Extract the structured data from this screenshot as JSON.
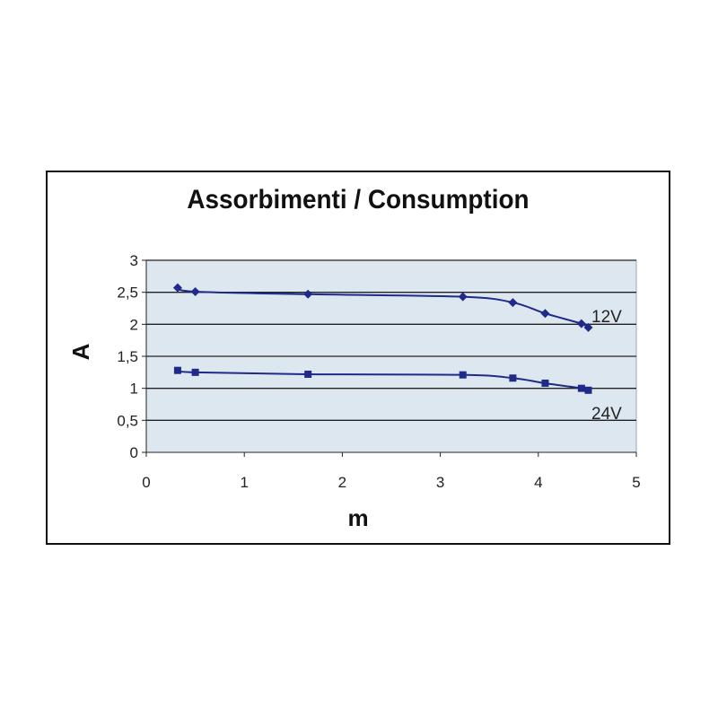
{
  "chart_data": {
    "type": "line",
    "title": "Assorbimenti / Consumption",
    "xlabel": "m",
    "ylabel": "A",
    "xlim": [
      0,
      5
    ],
    "ylim": [
      0,
      3
    ],
    "xticks": [
      "0",
      "1",
      "2",
      "3",
      "4",
      "5"
    ],
    "yticks": [
      "0",
      "0,5",
      "1",
      "1,5",
      "2",
      "2,5",
      "3"
    ],
    "grid": true,
    "series": [
      {
        "name": "12V",
        "marker": "diamond",
        "color": "#1f2a8a",
        "x": [
          0.32,
          0.5,
          1.65,
          3.23,
          3.74,
          4.07,
          4.44,
          4.51
        ],
        "y": [
          2.57,
          2.51,
          2.47,
          2.43,
          2.34,
          2.17,
          2.01,
          1.95
        ]
      },
      {
        "name": "24V",
        "marker": "square",
        "color": "#1f2a8a",
        "x": [
          0.32,
          0.5,
          1.65,
          3.23,
          3.74,
          4.07,
          4.44,
          4.51
        ],
        "y": [
          1.28,
          1.25,
          1.22,
          1.21,
          1.16,
          1.08,
          1.0,
          0.97
        ]
      }
    ]
  }
}
